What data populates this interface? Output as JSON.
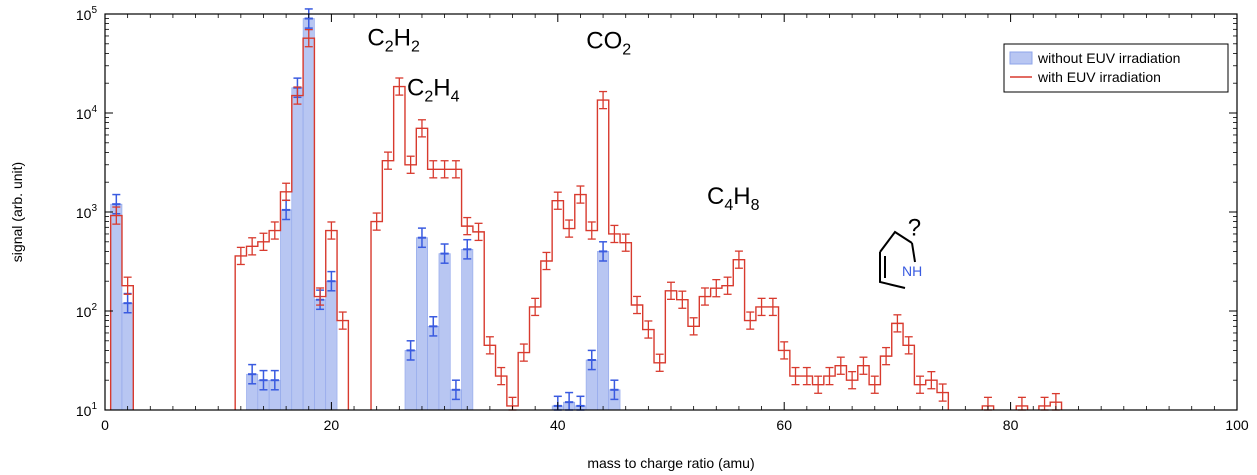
{
  "chart_data": {
    "type": "bar",
    "xlabel": "mass to charge ratio (amu)",
    "ylabel": "signal (arb. unit)",
    "xlim": [
      0,
      100
    ],
    "ylim": [
      10,
      100000
    ],
    "yscale": "log",
    "x_ticks": [
      0,
      20,
      40,
      60,
      80,
      100
    ],
    "y_ticks": [
      {
        "base": "10",
        "exp": "1",
        "value": 10
      },
      {
        "base": "10",
        "exp": "2",
        "value": 100
      },
      {
        "base": "10",
        "exp": "3",
        "value": 1000
      },
      {
        "base": "10",
        "exp": "4",
        "value": 10000
      },
      {
        "base": "10",
        "exp": "5",
        "value": 100000
      }
    ],
    "legend": {
      "placement": "top-right",
      "entries": [
        "without EUV irradiation",
        "with EUV irradiation"
      ]
    },
    "colors": {
      "without": "#3a5be0",
      "without_fill": "#b8c6f2",
      "with": "#d83a2e"
    },
    "series": [
      {
        "name": "without EUV irradiation",
        "style": "filled-bars",
        "x": [
          1,
          2,
          13,
          14,
          15,
          16,
          17,
          18,
          19,
          20,
          27,
          28,
          29,
          30,
          31,
          32,
          40,
          41,
          42,
          43,
          44,
          45
        ],
        "values": [
          1200,
          120,
          23,
          20,
          20,
          1050,
          18000,
          90000,
          130,
          200,
          40,
          550,
          70,
          380,
          16,
          420,
          11,
          12,
          11,
          32,
          400,
          16
        ]
      },
      {
        "name": "with EUV irradiation",
        "style": "step-line",
        "x": [
          1,
          2,
          12,
          13,
          14,
          15,
          16,
          17,
          18,
          19,
          20,
          21,
          24,
          25,
          26,
          27,
          28,
          29,
          30,
          31,
          32,
          33,
          34,
          35,
          36,
          37,
          38,
          39,
          40,
          41,
          42,
          43,
          44,
          45,
          46,
          47,
          48,
          49,
          50,
          51,
          52,
          53,
          54,
          55,
          56,
          57,
          58,
          59,
          60,
          61,
          62,
          63,
          64,
          65,
          66,
          67,
          68,
          69,
          70,
          71,
          72,
          73,
          74,
          78,
          81,
          83,
          84
        ],
        "values": [
          920,
          180,
          360,
          450,
          500,
          650,
          1600,
          15000,
          57000,
          140,
          650,
          80,
          800,
          3300,
          18500,
          3000,
          7000,
          2700,
          2700,
          2700,
          720,
          630,
          45,
          22,
          11,
          38,
          110,
          320,
          1300,
          680,
          1500,
          650,
          13500,
          600,
          490,
          115,
          65,
          30,
          160,
          130,
          70,
          140,
          170,
          180,
          330,
          80,
          110,
          110,
          40,
          22,
          22,
          18,
          22,
          28,
          20,
          28,
          18,
          35,
          75,
          45,
          18,
          20,
          15,
          11,
          11,
          11,
          12
        ]
      }
    ],
    "annotations": [
      {
        "main": "C",
        "sub1": "2",
        "mid": "H",
        "sub2": "2",
        "x": 25.5,
        "y": 48000
      },
      {
        "main": "C",
        "sub1": "2",
        "mid": "H",
        "sub2": "4",
        "x": 29.0,
        "y": 15000
      },
      {
        "main": "CO",
        "sub1": "2",
        "mid": "",
        "sub2": "",
        "x": 44.5,
        "y": 45000
      },
      {
        "main": "C",
        "sub1": "4",
        "mid": "H",
        "sub2": "8",
        "x": 55.5,
        "y": 1200
      },
      {
        "main": "?",
        "sub1": "",
        "mid": "",
        "sub2": "",
        "x": 71.5,
        "y": 580
      }
    ],
    "structure_label": "NH"
  }
}
